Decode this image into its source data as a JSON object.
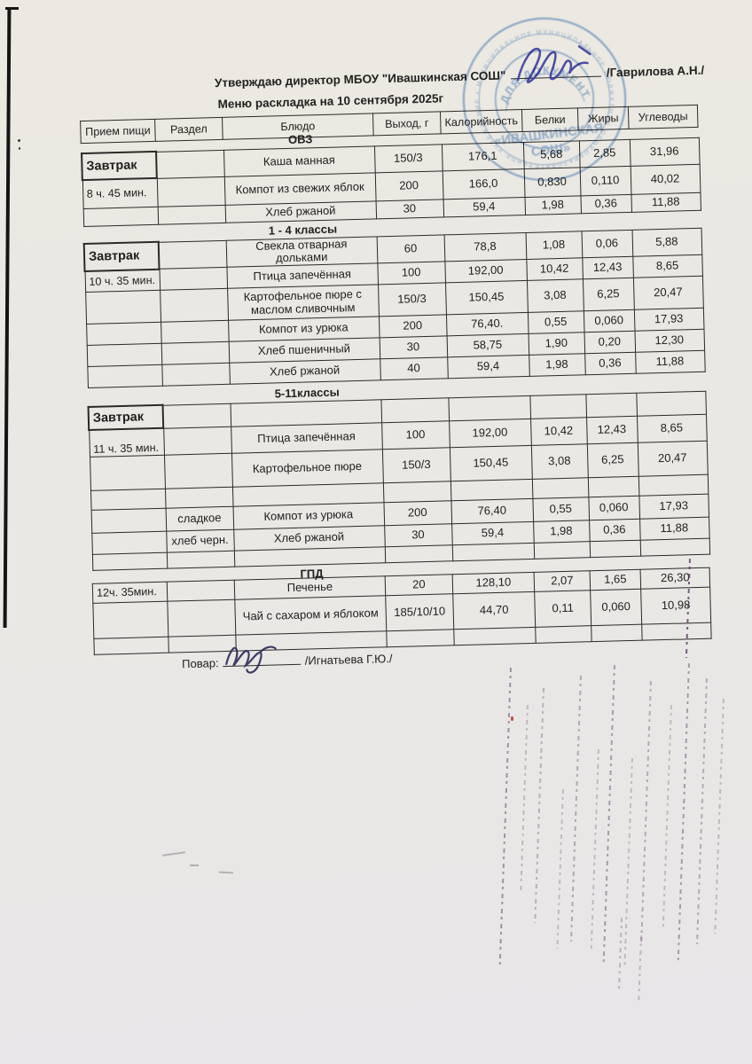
{
  "document": {
    "approval_line": {
      "prefix": "Утверждаю директор МБОУ \"Ивашкинская СОШ\"",
      "suffix": "/Гаврилова А.Н./"
    },
    "menu_title": "Меню раскладка на 10 сентября 2025г",
    "cook_label": "Повар:",
    "cook_name": "/Игнатьева Г.Ю./"
  },
  "stamp": {
    "ring_text": "МУНИЦИПАЛЬНОЕ БЮДЖЕТНОЕ ОБЩЕОБРАЗОВАТЕЛЬНОЕ УЧРЕЖДЕНИЕ • ",
    "arc_text": "ДЛЯ ДОКУМЕНТОВ",
    "center_line1": "«ИВАШКИНСКАЯ",
    "center_line2": "СОШ»"
  },
  "table": {
    "headers": [
      "Прием пищи",
      "Раздел",
      "Блюдо",
      "Выход, г",
      "Калорийность",
      "Белки",
      "Жиры",
      "Углеводы"
    ]
  },
  "sections": [
    {
      "title": "ОВЗ",
      "rows": [
        {
          "meal": "Завтрак",
          "razdel": "",
          "dish": "Каша манная",
          "out": "150/3",
          "kcal": "176,1",
          "protein": "5,68",
          "fat": "2,85",
          "carbs": "31,96"
        },
        {
          "meal": "8 ч. 45 мин.",
          "razdel": "",
          "dish": "Компот из свежих яблок",
          "out": "200",
          "kcal": "166,0",
          "protein": "0,830",
          "fat": "0,110",
          "carbs": "40,02"
        },
        {
          "meal": "",
          "razdel": "",
          "dish": "Хлеб ржаной",
          "out": "30",
          "kcal": "59,4",
          "protein": "1,98",
          "fat": "0,36",
          "carbs": "11,88"
        }
      ]
    },
    {
      "title": "1 - 4 классы",
      "rows": [
        {
          "meal": "Завтрак",
          "razdel": "",
          "dish": "Свекла отварная дольками",
          "out": "60",
          "kcal": "78,8",
          "protein": "1,08",
          "fat": "0,06",
          "carbs": "5,88"
        },
        {
          "meal": "10 ч. 35 мин.",
          "razdel": "",
          "dish": "Птица запечённая",
          "out": "100",
          "kcal": "192,00",
          "protein": "10,42",
          "fat": "12,43",
          "carbs": "8,65"
        },
        {
          "meal": "",
          "razdel": "",
          "dish": "Картофельное пюре с маслом сливочным",
          "out": "150/3",
          "kcal": "150,45",
          "protein": "3,08",
          "fat": "6,25",
          "carbs": "20,47"
        },
        {
          "meal": "",
          "razdel": "",
          "dish": "Компот из урюка",
          "out": "200",
          "kcal": "76,40.",
          "protein": "0,55",
          "fat": "0,060",
          "carbs": "17,93"
        },
        {
          "meal": "",
          "razdel": "",
          "dish": "Хлеб пшеничный",
          "out": "30",
          "kcal": "58,75",
          "protein": "1,90",
          "fat": "0,20",
          "carbs": "12,30"
        },
        {
          "meal": "",
          "razdel": "",
          "dish": "Хлеб ржаной",
          "out": "40",
          "kcal": "59,4",
          "protein": "1,98",
          "fat": "0,36",
          "carbs": "11,88"
        }
      ]
    },
    {
      "title": "5-11классы",
      "rows": [
        {
          "meal": "Завтрак",
          "razdel": "",
          "dish": "",
          "out": "",
          "kcal": "",
          "protein": "",
          "fat": "",
          "carbs": ""
        },
        {
          "meal": "11 ч. 35 мин.",
          "razdel": "",
          "dish": "Птица запечённая",
          "out": "100",
          "kcal": "192,00",
          "protein": "10,42",
          "fat": "12,43",
          "carbs": "8,65"
        },
        {
          "meal": "",
          "razdel": "",
          "dish": "Картофельное пюре",
          "out": "150/3",
          "kcal": "150,45",
          "protein": "3,08",
          "fat": "6,25",
          "carbs": "20,47"
        },
        {
          "meal": "",
          "razdel": "",
          "dish": "",
          "out": "",
          "kcal": "",
          "protein": "",
          "fat": "",
          "carbs": ""
        },
        {
          "meal": "",
          "razdel": "сладкое",
          "dish": "Компот из урюка",
          "out": "200",
          "kcal": "76,40",
          "protein": "0,55",
          "fat": "0,060",
          "carbs": "17,93"
        },
        {
          "meal": "",
          "razdel": "хлеб черн.",
          "dish": "Хлеб ржаной",
          "out": "30",
          "kcal": "59,4",
          "protein": "1,98",
          "fat": "0,36",
          "carbs": "11,88"
        },
        {
          "meal": "",
          "razdel": "",
          "dish": "",
          "out": "",
          "kcal": "",
          "protein": "",
          "fat": "",
          "carbs": ""
        }
      ]
    },
    {
      "title": "ГПД",
      "rows": [
        {
          "meal": "12ч. 35мин.",
          "razdel": "",
          "dish": "Печенье",
          "out": "20",
          "kcal": "128,10",
          "protein": "2,07",
          "fat": "1,65",
          "carbs": "26,30"
        },
        {
          "meal": "",
          "razdel": "",
          "dish": "Чай с сахаром и яблоком",
          "out": "185/10/10",
          "kcal": "44,70",
          "protein": "0,11",
          "fat": "0,060",
          "carbs": "10,98"
        },
        {
          "meal": "",
          "razdel": "",
          "dish": "",
          "out": "",
          "kcal": "",
          "protein": "",
          "fat": "",
          "carbs": ""
        }
      ]
    }
  ],
  "colors": {
    "paper": "#eae8e2",
    "ink": "#22211f",
    "stamp_blue": "#4d82c8",
    "signature_blue": "#3c3c9c",
    "streak_purple": "#5c3a66"
  }
}
